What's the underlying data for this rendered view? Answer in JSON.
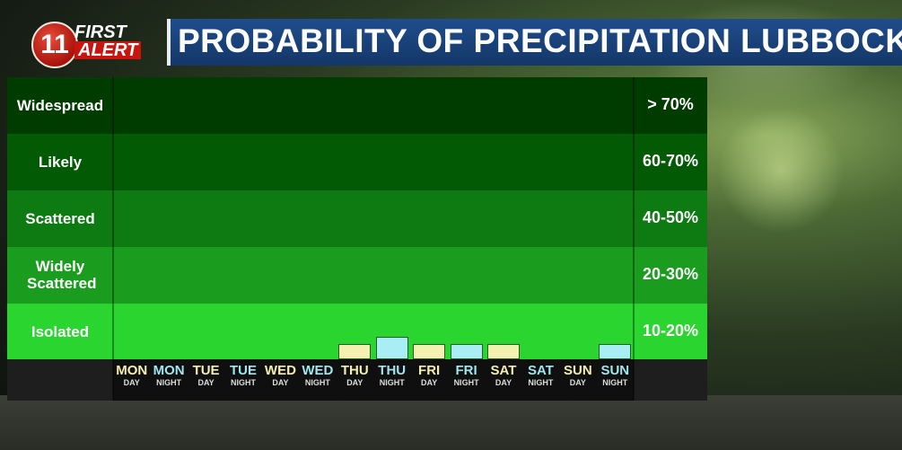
{
  "header": {
    "logo_number": "11",
    "logo_line1": "FIRST",
    "logo_line2": "ALERT",
    "title": "PROBABILITY OF PRECIPITATION LUBBOCK"
  },
  "colors": {
    "day_bar": "#f4f0b0",
    "night_bar": "#a8eef4",
    "day_label": "#f4efb0",
    "night_label": "#9fe6ef",
    "title_bar": "#1f4d8c"
  },
  "chart_data": {
    "type": "bar",
    "title": "PROBABILITY OF PRECIPITATION LUBBOCK",
    "bands": [
      {
        "label": "Widespread",
        "range": "> 70%",
        "color": "#003b00"
      },
      {
        "label": "Likely",
        "range": "60-70%",
        "color": "#035a05"
      },
      {
        "label": "Scattered",
        "range": "40-50%",
        "color": "#0d7a12"
      },
      {
        "label": "Widely Scattered",
        "range": "20-30%",
        "color": "#1a9d1f"
      },
      {
        "label": "Isolated",
        "range": "10-20%",
        "color": "#2bd530"
      }
    ],
    "categories": [
      {
        "day": "MON",
        "period": "DAY",
        "value": 0
      },
      {
        "day": "MON",
        "period": "NIGHT",
        "value": 0
      },
      {
        "day": "TUE",
        "period": "DAY",
        "value": 0
      },
      {
        "day": "TUE",
        "period": "NIGHT",
        "value": 0
      },
      {
        "day": "WED",
        "period": "DAY",
        "value": 0
      },
      {
        "day": "WED",
        "period": "NIGHT",
        "value": 0
      },
      {
        "day": "THU",
        "period": "DAY",
        "value": 5
      },
      {
        "day": "THU",
        "period": "NIGHT",
        "value": 10
      },
      {
        "day": "FRI",
        "period": "DAY",
        "value": 5
      },
      {
        "day": "FRI",
        "period": "NIGHT",
        "value": 5
      },
      {
        "day": "SAT",
        "period": "DAY",
        "value": 5
      },
      {
        "day": "SAT",
        "period": "NIGHT",
        "value": 0
      },
      {
        "day": "SUN",
        "period": "DAY",
        "value": 0
      },
      {
        "day": "SUN",
        "period": "NIGHT",
        "value": 5
      }
    ],
    "ylim": [
      0,
      100
    ]
  }
}
